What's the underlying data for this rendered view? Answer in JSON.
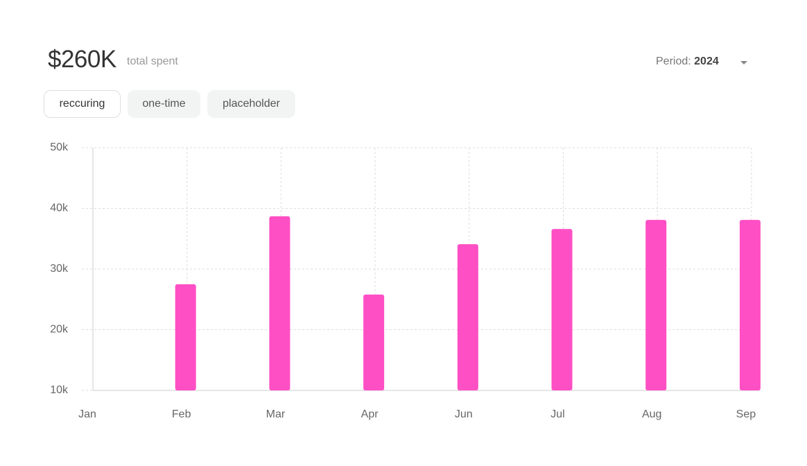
{
  "header": {
    "amount": "$260K",
    "amount_caption": "total spent",
    "period_label": "Period:",
    "period_value": "2024"
  },
  "tabs": [
    "reccuring",
    "one-time",
    "placeholder"
  ],
  "chart_data": {
    "type": "bar",
    "categories": [
      "Jan",
      "Feb",
      "Mar",
      "Apr",
      "Jun",
      "Jul",
      "Aug",
      "Sep"
    ],
    "values": [
      null,
      27500,
      38700,
      25800,
      34100,
      36600,
      38100,
      38100
    ],
    "color": "#ff4fc4",
    "ylim": [
      10000,
      50000
    ],
    "yticks": [
      {
        "value": 10000,
        "label": "10k"
      },
      {
        "value": 20000,
        "label": "20k"
      },
      {
        "value": 30000,
        "label": "30k"
      },
      {
        "value": 40000,
        "label": "40k"
      },
      {
        "value": 50000,
        "label": "50k"
      }
    ],
    "grid": true
  }
}
